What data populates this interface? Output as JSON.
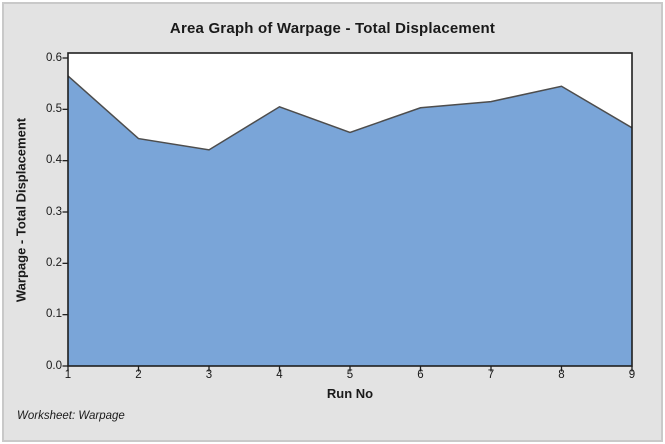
{
  "title": "Area Graph of Warpage - Total Displacement",
  "footer": "Worksheet: Warpage",
  "colors": {
    "background": "#e3e3e3",
    "frame_border": "#c9c9c9",
    "plot_background": "#ffffff",
    "plot_border": "#1f1f1f",
    "area_fill": "#7aa5d8",
    "area_outline": "#4d4d4d",
    "text": "#1a1a1a"
  },
  "chart_data": {
    "type": "area",
    "title": "Area Graph of Warpage - Total Displacement",
    "xlabel": "Run No",
    "ylabel": "Warpage - Total Displacement",
    "x": [
      1,
      2,
      3,
      4,
      5,
      6,
      7,
      8,
      9
    ],
    "series": [
      {
        "name": "Warpage - Total Displacement",
        "values": [
          0.565,
          0.443,
          0.421,
          0.505,
          0.455,
          0.503,
          0.515,
          0.545,
          0.464
        ]
      }
    ],
    "xlim": [
      1,
      9
    ],
    "ylim": [
      0.0,
      0.6
    ],
    "xticks": [
      "1",
      "2",
      "3",
      "4",
      "5",
      "6",
      "7",
      "8",
      "9"
    ],
    "yticks": [
      "0.0",
      "0.1",
      "0.2",
      "0.3",
      "0.4",
      "0.5",
      "0.6"
    ],
    "grid": false,
    "legend": "none",
    "annotation": "Worksheet: Warpage"
  }
}
